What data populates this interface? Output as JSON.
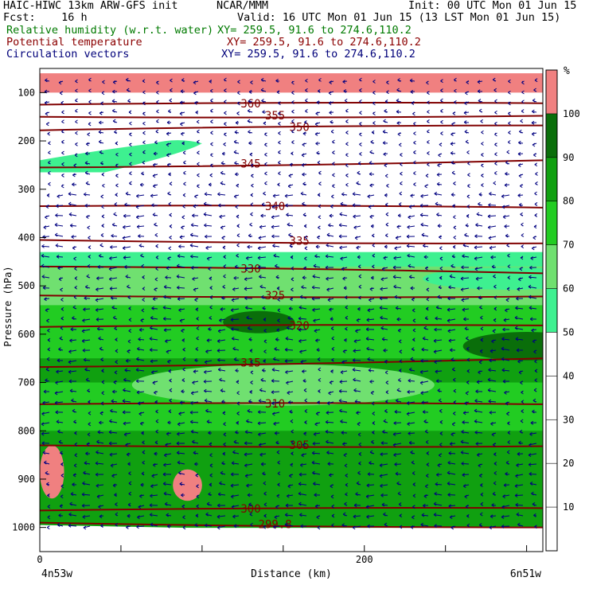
{
  "header": {
    "model": "HAIC-HIWC 13km ARW-GFS init",
    "center": "NCAR/MMM",
    "init": "Init: 00 UTC Mon 01 Jun 15",
    "fcst": "Fcst:    16 h",
    "valid": "Valid: 16 UTC Mon 01 Jun 15 (13 LST Mon 01 Jun 15)",
    "field1": "Relative humidity (w.r.t. water)",
    "field1_xy": "XY= 259.5, 91.6 to 274.6,110.2",
    "field2": "Potential temperature",
    "field2_xy": "XY= 259.5, 91.6 to 274.6,110.2",
    "field3": "Circulation vectors",
    "field3_xy": "XY= 259.5, 91.6 to 274.6,110.2"
  },
  "colors": {
    "rh_0_50": "#ffffff",
    "rh_50_60": "#3ef090",
    "rh_60_70": "#70e070",
    "rh_70_80": "#22cc22",
    "rh_80_90": "#10a010",
    "rh_90_100": "#0a6e0a",
    "rh_100_up": "#f08080",
    "theta": "#800000",
    "vectors": "#000080"
  },
  "chart_data": {
    "type": "heatmap",
    "xlabel": "Distance (km)",
    "ylabel": "Pressure (hPa)",
    "x_ticks": [
      "0",
      "200"
    ],
    "y_ticks": [
      "100",
      "200",
      "300",
      "400",
      "500",
      "600",
      "700",
      "800",
      "900",
      "1000"
    ],
    "xlim": [
      0,
      310
    ],
    "ylim": [
      1050,
      50
    ],
    "left_endpoint": "4n53w",
    "right_endpoint": "6n51w",
    "colorbar": {
      "unit": "%",
      "labels": [
        "10",
        "20",
        "30",
        "40",
        "50",
        "60",
        "70",
        "80",
        "90",
        "100"
      ],
      "levels": [
        0,
        50,
        60,
        70,
        80,
        90,
        100,
        110
      ]
    },
    "rh_profile": {
      "pressure": [
        60,
        90,
        100,
        200,
        300,
        400,
        430,
        460,
        500,
        540,
        580,
        650,
        700,
        750,
        800,
        850,
        900,
        950,
        1000
      ],
      "rh": [
        110,
        110,
        45,
        45,
        30,
        35,
        52,
        62,
        68,
        72,
        78,
        82,
        70,
        72,
        80,
        86,
        88,
        86,
        85
      ]
    },
    "moist_patch_200hPa": {
      "x": [
        0,
        100
      ],
      "pressure": [
        180,
        270
      ],
      "rh": "50-60"
    },
    "supersaturated_patches": [
      {
        "x": [
          0,
          15
        ],
        "pressure": [
          830,
          940
        ],
        "rh": ">100"
      },
      {
        "x": [
          82,
          100
        ],
        "pressure": [
          880,
          945
        ],
        "rh": ">100"
      }
    ],
    "theta_contours": [
      {
        "label": "360",
        "p_left": 125,
        "p_right": 122
      },
      {
        "label": "355",
        "p_left": 150,
        "p_right": 148
      },
      {
        "label": "350",
        "p_left": 178,
        "p_right": 168
      },
      {
        "label": "345",
        "p_left": 255,
        "p_right": 240
      },
      {
        "label": "340",
        "p_left": 335,
        "p_right": 338
      },
      {
        "label": "335",
        "p_left": 405,
        "p_right": 412
      },
      {
        "label": "330",
        "p_left": 460,
        "p_right": 474
      },
      {
        "label": "325",
        "p_left": 520,
        "p_right": 522
      },
      {
        "label": "320",
        "p_left": 585,
        "p_right": 582
      },
      {
        "label": "315",
        "p_left": 668,
        "p_right": 650
      },
      {
        "label": "310",
        "p_left": 745,
        "p_right": 745
      },
      {
        "label": "305",
        "p_left": 830,
        "p_right": 832
      },
      {
        "label": "300",
        "p_left": 965,
        "p_right": 960
      },
      {
        "label": "299.8",
        "p_left": 990,
        "p_right": 1000
      }
    ],
    "vector_flow": "mostly westward (leftward) throughout the section"
  }
}
